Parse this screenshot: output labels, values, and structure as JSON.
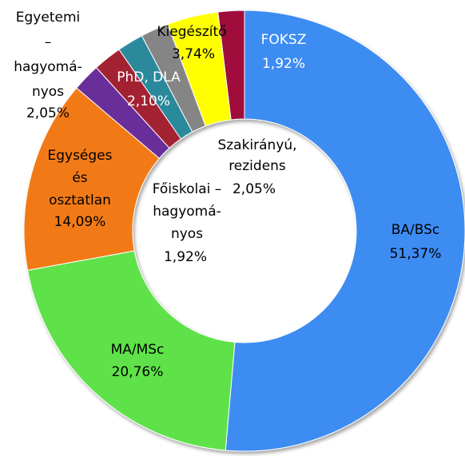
{
  "chart_data": {
    "type": "donut",
    "categories": [
      [
        "BA/BSc"
      ],
      [
        "MA/MSc"
      ],
      [
        "Egységes",
        "és",
        "osztatlan"
      ],
      [
        "Egyetemi",
        "–",
        "hagyomá-",
        "nyos"
      ],
      [
        "PhD, DLA"
      ],
      [
        "Főiskolai –",
        "hagyomá-",
        "nyos"
      ],
      [
        "Szakirányú,",
        "rezidens"
      ],
      [
        "Kiegészítő"
      ],
      [
        "FOKSZ"
      ]
    ],
    "values": [
      51.37,
      20.76,
      14.09,
      2.05,
      2.1,
      1.92,
      2.05,
      3.74,
      1.92
    ],
    "value_labels": [
      "51,37%",
      "20,76%",
      "14,09%",
      "2,05%",
      "2,10%",
      "1,92%",
      "2,05%",
      "3,74%",
      "1,92%"
    ],
    "colors": [
      "#3d8cf2",
      "#5ee24a",
      "#f27a18",
      "#6a2f9a",
      "#a32232",
      "#2b8a9c",
      "#858585",
      "#ffff00",
      "#a0103c"
    ]
  }
}
